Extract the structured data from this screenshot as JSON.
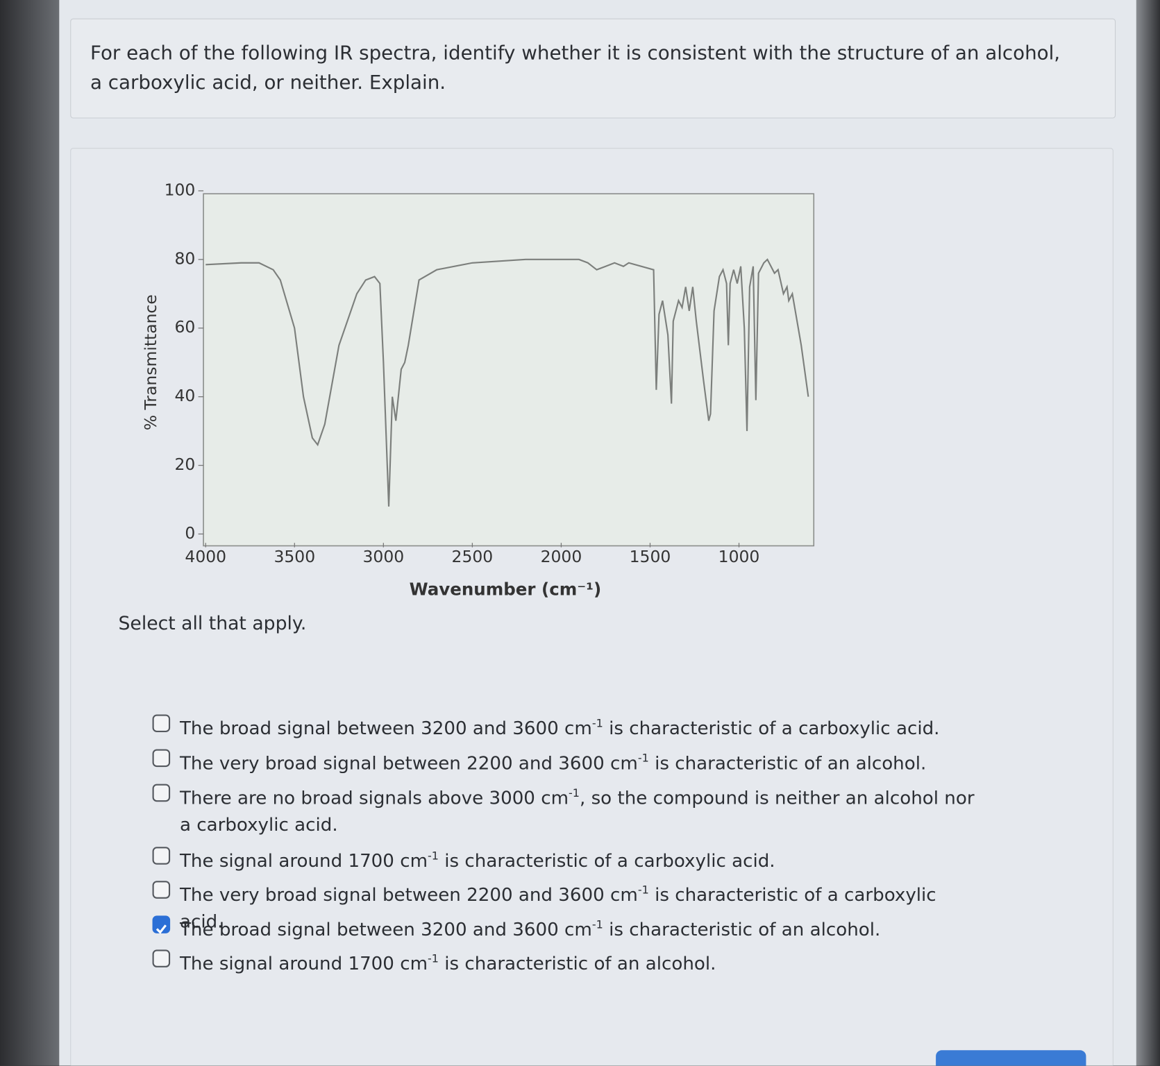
{
  "question": "For each of the following IR spectra, identify whether it is consistent with the structure of an alcohol, a carboxylic acid, or neither. Explain.",
  "chart_data": {
    "type": "line",
    "xlabel": "Wavenumber (cm⁻¹)",
    "ylabel": "% Transmittance",
    "xlim": [
      4000,
      600
    ],
    "ylim": [
      0,
      100
    ],
    "xticks": [
      4000,
      3500,
      3000,
      2500,
      2000,
      1500,
      1000
    ],
    "yticks": [
      0,
      20,
      40,
      60,
      80,
      100
    ],
    "color": "#7c7f7c",
    "x": [
      4000,
      3800,
      3700,
      3620,
      3580,
      3500,
      3450,
      3400,
      3370,
      3330,
      3250,
      3150,
      3100,
      3050,
      3020,
      3000,
      2970,
      2950,
      2930,
      2900,
      2880,
      2860,
      2800,
      2700,
      2500,
      2200,
      1900,
      1850,
      1800,
      1750,
      1700,
      1650,
      1620,
      1480,
      1465,
      1450,
      1430,
      1400,
      1380,
      1370,
      1340,
      1320,
      1300,
      1280,
      1260,
      1240,
      1200,
      1170,
      1160,
      1140,
      1110,
      1090,
      1070,
      1060,
      1050,
      1030,
      1010,
      990,
      970,
      955,
      940,
      920,
      905,
      890,
      860,
      840,
      820,
      800,
      780,
      750,
      730,
      720,
      700,
      650,
      610
    ],
    "values": [
      78.5,
      79,
      79,
      77,
      74,
      60,
      40,
      28,
      26,
      32,
      55,
      70,
      74,
      75,
      73,
      50,
      8,
      40,
      33,
      48,
      50,
      55,
      74,
      77,
      79,
      80,
      80,
      79,
      77,
      78,
      79,
      78,
      79,
      77,
      42,
      64,
      68,
      58,
      38,
      62,
      68,
      66,
      72,
      65,
      72,
      62,
      45,
      33,
      35,
      65,
      75,
      77,
      73,
      55,
      73,
      77,
      73,
      78,
      60,
      30,
      72,
      78,
      39,
      76,
      79,
      80,
      78,
      76,
      77,
      70,
      72,
      68,
      70,
      55,
      40
    ]
  },
  "prompt": "Select all that apply.",
  "options": [
    {
      "parts": [
        "The broad signal between 3200 and 3600 cm",
        "-1",
        " is characteristic of a carboxylic acid."
      ],
      "checked": false
    },
    {
      "parts": [
        "The very broad signal between 2200 and 3600 cm",
        "-1",
        " is characteristic of an alcohol."
      ],
      "checked": false
    },
    {
      "parts": [
        "There are no broad signals above 3000 cm",
        "-1",
        ", so the compound is neither an alcohol nor a carboxylic acid."
      ],
      "checked": false
    },
    {
      "parts": [
        "The signal around 1700 cm",
        "-1",
        " is characteristic of a carboxylic acid."
      ],
      "checked": false
    },
    {
      "parts": [
        "The very broad signal between 2200 and 3600 cm",
        "-1",
        " is characteristic of a carboxylic acid."
      ],
      "checked": false
    },
    {
      "parts": [
        "The broad signal between 3200 and 3600 cm",
        "-1",
        " is characteristic of an alcohol."
      ],
      "checked": true
    },
    {
      "parts": [
        "The signal around 1700 cm",
        "-1",
        " is characteristic of an alcohol."
      ],
      "checked": false
    }
  ]
}
